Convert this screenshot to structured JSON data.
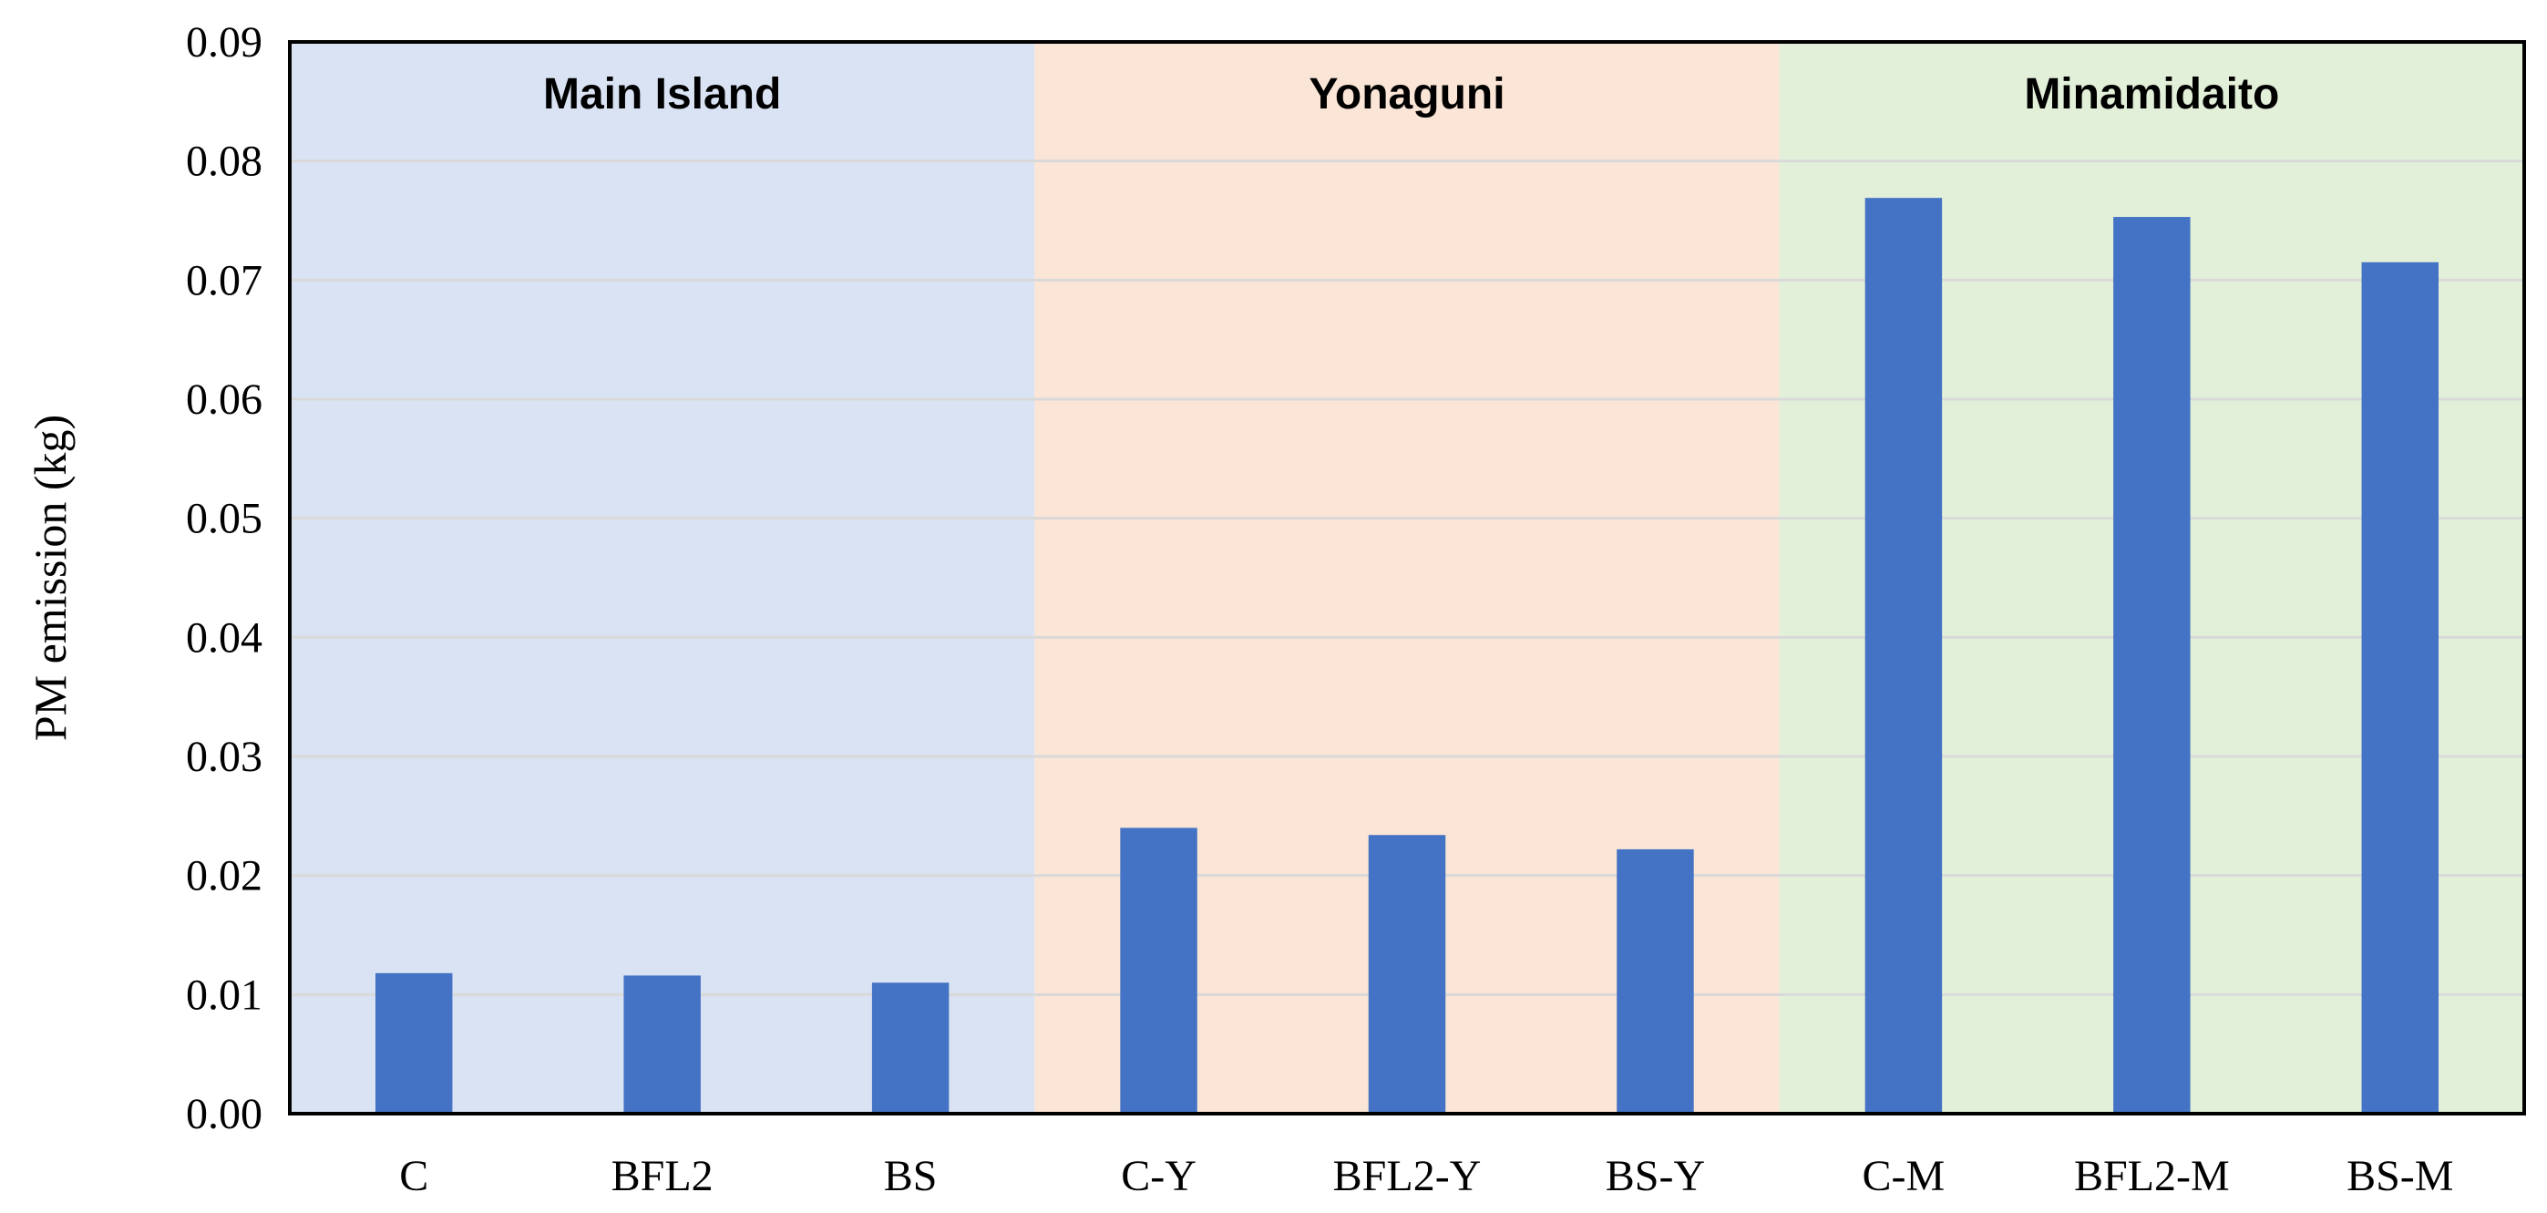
{
  "chart_data": {
    "type": "bar",
    "categories": [
      "C",
      "BFL2",
      "BS",
      "C-Y",
      "BFL2-Y",
      "BS-Y",
      "C-M",
      "BFL2-M",
      "BS-M"
    ],
    "values": [
      0.0118,
      0.0116,
      0.011,
      0.024,
      0.0234,
      0.0222,
      0.0769,
      0.0753,
      0.0715
    ],
    "title": "",
    "xlabel": "",
    "ylabel": "PM emission (kg)",
    "ylim": [
      0,
      0.09
    ],
    "yticks": [
      "0.00",
      "0.01",
      "0.02",
      "0.03",
      "0.04",
      "0.05",
      "0.06",
      "0.07",
      "0.08",
      "0.09"
    ],
    "grid": true,
    "bar_color": "#4472C4",
    "regions": [
      {
        "label": "Main Island",
        "categories": [
          "C",
          "BFL2",
          "BS"
        ],
        "color": "#DAE3F3"
      },
      {
        "label": "Yonaguni",
        "categories": [
          "C-Y",
          "BFL2-Y",
          "BS-Y"
        ],
        "color": "#FBE5D6"
      },
      {
        "label": "Minamidaito",
        "categories": [
          "C-M",
          "BFL2-M",
          "BS-M"
        ],
        "color": "#E2F0D9"
      }
    ]
  }
}
